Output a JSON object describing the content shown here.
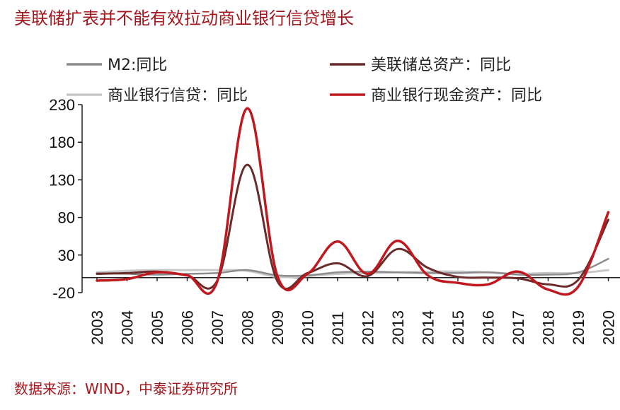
{
  "title": "美联储扩表并不能有效拉动商业银行信贷增长",
  "source": "数据来源：WIND，中泰证券研究所",
  "chart_data": {
    "type": "line",
    "title": "美联储扩表并不能有效拉动商业银行信贷增长",
    "xlabel": "",
    "ylabel": "",
    "x": [
      "2003",
      "2004",
      "2005",
      "2006",
      "2007",
      "2008",
      "2009",
      "2010",
      "2011",
      "2012",
      "2013",
      "2014",
      "2015",
      "2016",
      "2017",
      "2018",
      "2019",
      "2020"
    ],
    "yticks": [
      230,
      180,
      130,
      80,
      30,
      -20
    ],
    "ylim": [
      -20,
      230
    ],
    "grid": false,
    "legend_position": "top",
    "series": [
      {
        "name": "M2:同比",
        "color": "#8c8c8c",
        "values": [
          6,
          5,
          4,
          5,
          6,
          10,
          3,
          3,
          7,
          8,
          7,
          6,
          6,
          7,
          4,
          4,
          7,
          25
        ]
      },
      {
        "name": "美联储总资产：同比",
        "color": "#6b2b2b",
        "values": [
          5,
          6,
          8,
          3,
          -4,
          150,
          -5,
          6,
          19,
          2,
          38,
          13,
          1,
          0,
          -1,
          -9,
          -3,
          77
        ]
      },
      {
        "name": "商业银行信贷：同比",
        "color": "#c8c8c8",
        "values": [
          7,
          9,
          10,
          10,
          10,
          9,
          1,
          2,
          5,
          6,
          7,
          8,
          8,
          7,
          5,
          6,
          6,
          10
        ]
      },
      {
        "name": "商业银行现金资产：同比",
        "color": "#c0181f",
        "values": [
          -4,
          -2,
          7,
          3,
          -5,
          225,
          2,
          5,
          48,
          5,
          49,
          3,
          -7,
          -9,
          8,
          -16,
          -12,
          87
        ]
      }
    ]
  }
}
